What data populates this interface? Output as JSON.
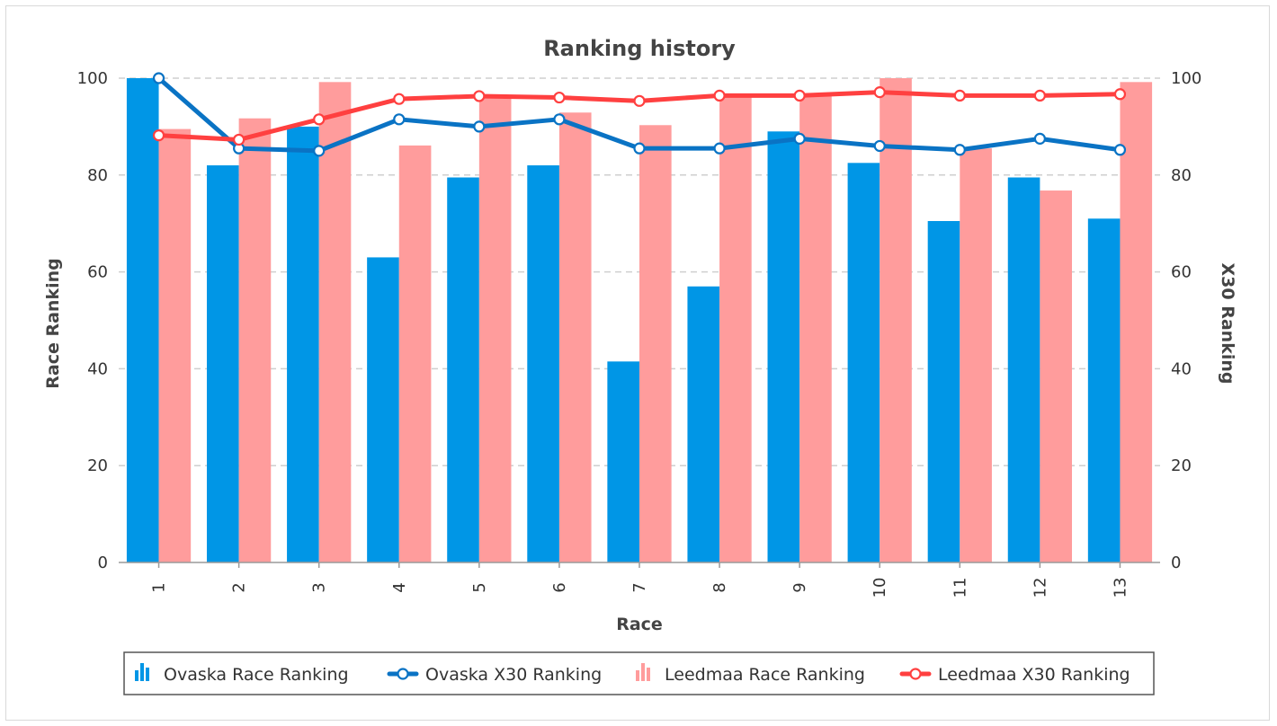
{
  "chart_data": {
    "type": "bar",
    "title": "Ranking history",
    "xlabel": "Race",
    "ylabel": "Race Ranking",
    "ylabel_right": "X30 Ranking",
    "ylim": [
      0,
      100
    ],
    "ylim_right": [
      0,
      100
    ],
    "yticks": [
      "0",
      "20",
      "40",
      "60",
      "80",
      "100"
    ],
    "grid": true,
    "legend_position": "bottom",
    "categories": [
      "1",
      "2",
      "3",
      "4",
      "5",
      "6",
      "7",
      "8",
      "9",
      "10",
      "11",
      "12",
      "13"
    ],
    "series": [
      {
        "name": "Ovaska Race Ranking",
        "type": "bar",
        "axis": "left",
        "color": "#0096e6",
        "values": [
          100,
          82,
          90,
          63,
          79.5,
          82,
          41.5,
          57,
          89,
          82.5,
          70.5,
          79.5,
          71
        ]
      },
      {
        "name": "Ovaska X30 Ranking",
        "type": "line",
        "axis": "right",
        "color": "#0a73c4",
        "values": [
          100,
          85.5,
          85,
          91.5,
          90,
          91.5,
          85.5,
          85.5,
          87.5,
          86,
          85.2,
          87.5,
          85.2
        ]
      },
      {
        "name": "Leedmaa Race Ranking",
        "type": "bar",
        "axis": "left",
        "color": "#ff9c9c",
        "values": [
          89.5,
          91.7,
          99.2,
          86.1,
          96.5,
          92.9,
          90.3,
          96.5,
          96.5,
          100,
          85.5,
          76.8,
          99.2
        ]
      },
      {
        "name": "Leedmaa X30 Ranking",
        "type": "line",
        "axis": "right",
        "color": "#ff4040",
        "values": [
          88.2,
          87.3,
          91.5,
          95.7,
          96.3,
          96,
          95.3,
          96.4,
          96.4,
          97.1,
          96.4,
          96.4,
          96.7
        ]
      }
    ]
  }
}
